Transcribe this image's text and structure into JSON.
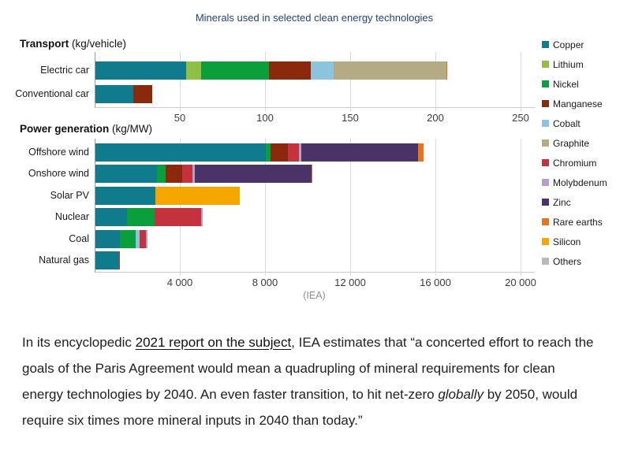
{
  "chart": {
    "title": "Minerals used in selected clean energy technologies",
    "title_color": "#25427f",
    "source_caption": "(IEA)",
    "legend_position": "right",
    "grid": "vertical-gridlines-on",
    "legend": [
      {
        "name": "Copper",
        "color": "#0f7b8c"
      },
      {
        "name": "Lithium",
        "color": "#8dc044"
      },
      {
        "name": "Nickel",
        "color": "#0a9f3a"
      },
      {
        "name": "Manganese",
        "color": "#8a290c"
      },
      {
        "name": "Cobalt",
        "color": "#8bc4dc"
      },
      {
        "name": "Graphite",
        "color": "#b4ab84"
      },
      {
        "name": "Chromium",
        "color": "#c4333d"
      },
      {
        "name": "Molybdenum",
        "color": "#b2a0ca"
      },
      {
        "name": "Zinc",
        "color": "#4a3367"
      },
      {
        "name": "Rare earths",
        "color": "#e6731e"
      },
      {
        "name": "Silicon",
        "color": "#f5a700"
      },
      {
        "name": "Others",
        "color": "#b9b9b9"
      }
    ]
  },
  "chart_data": [
    {
      "type": "bar",
      "orientation": "horizontal",
      "stacked": true,
      "section_title": "Transport",
      "section_unit": "(kg/vehicle)",
      "categories": [
        "Electric car",
        "Conventional car"
      ],
      "series": [
        {
          "name": "Copper",
          "values": [
            53.2,
            22.3
          ]
        },
        {
          "name": "Lithium",
          "values": [
            8.9,
            0
          ]
        },
        {
          "name": "Nickel",
          "values": [
            39.9,
            0
          ]
        },
        {
          "name": "Manganese",
          "values": [
            24.5,
            11.2
          ]
        },
        {
          "name": "Cobalt",
          "values": [
            13.3,
            0
          ]
        },
        {
          "name": "Graphite",
          "values": [
            66.3,
            0
          ]
        },
        {
          "name": "Rare earths",
          "values": [
            0.5,
            0
          ]
        }
      ],
      "xlim": [
        0,
        250
      ],
      "ticks": [
        {
          "value": 50,
          "label": "50"
        },
        {
          "value": 100,
          "label": "100"
        },
        {
          "value": 150,
          "label": "150"
        },
        {
          "value": 200,
          "label": "200"
        },
        {
          "value": 250,
          "label": "250"
        }
      ]
    },
    {
      "type": "bar",
      "orientation": "horizontal",
      "stacked": true,
      "section_title": "Power generation",
      "section_unit": "(kg/MW)",
      "categories": [
        "Offshore wind",
        "Onshore wind",
        "Solar PV",
        "Nuclear",
        "Coal",
        "Natural gas"
      ],
      "series": [
        {
          "name": "Copper",
          "values": [
            8000,
            2900,
            2822,
            1473,
            1150,
            1100
          ]
        },
        {
          "name": "Nickel",
          "values": [
            240,
            404,
            0,
            1297,
            721,
            0
          ]
        },
        {
          "name": "Manganese",
          "values": [
            790,
            780,
            0,
            0,
            0,
            0
          ]
        },
        {
          "name": "Cobalt",
          "values": [
            0,
            0,
            0,
            0,
            201,
            0
          ]
        },
        {
          "name": "Chromium",
          "values": [
            525,
            470,
            0,
            2190,
            308,
            48
          ]
        },
        {
          "name": "Molybdenum",
          "values": [
            109,
            99,
            0,
            70,
            66,
            0
          ]
        },
        {
          "name": "Zinc",
          "values": [
            5500,
            5500,
            0,
            0,
            0,
            0
          ]
        },
        {
          "name": "Rare earths",
          "values": [
            239,
            14,
            0,
            0,
            0,
            0
          ]
        },
        {
          "name": "Silicon",
          "values": [
            0,
            0,
            3948,
            0,
            0,
            0
          ]
        }
      ],
      "xlim": [
        0,
        20000
      ],
      "ticks": [
        {
          "value": 4000,
          "label": "4 000"
        },
        {
          "value": 8000,
          "label": "8 000"
        },
        {
          "value": 12000,
          "label": "12 000"
        },
        {
          "value": 16000,
          "label": "16 000"
        },
        {
          "value": 20000,
          "label": "20 000"
        }
      ]
    }
  ],
  "article": {
    "before_link": "In its encyclopedic ",
    "link_text": "2021 report on the subject",
    "mid": ", IEA estimates that “a concerted effort to reach the goals of the Paris Agreement would mean a quadrupling of mineral requirements for clean energy technologies by 2040. An even faster transition, to hit net-zero ",
    "italic_text": "globally",
    "after_italic": " by 2050, would require six times more mineral inputs in 2040 than today.”"
  }
}
